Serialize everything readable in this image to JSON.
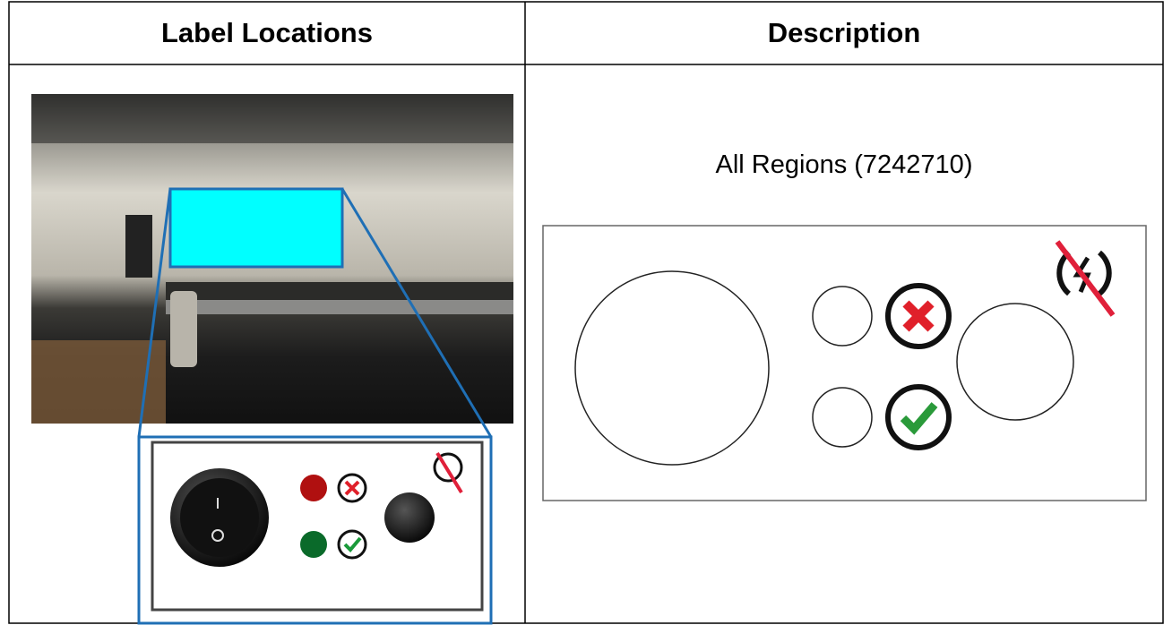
{
  "table": {
    "header": [
      "Label Locations",
      "Description"
    ],
    "rows": [
      [
        "All Regions (7242710)"
      ]
    ]
  }
}
